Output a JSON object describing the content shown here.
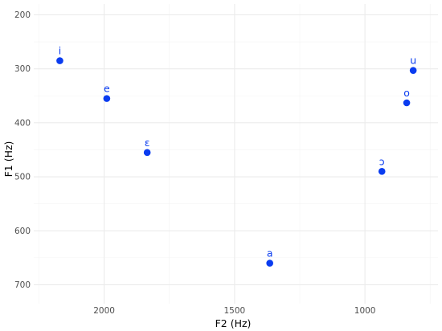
{
  "chart_data": {
    "type": "scatter",
    "xlabel": "F2 (Hz)",
    "ylabel": "F1 (Hz)",
    "x_reversed": true,
    "y_reversed": true,
    "xlim": [
      2270,
      720
    ],
    "ylim": [
      180,
      735
    ],
    "xticks": [
      2000,
      1500,
      1000
    ],
    "xtick_labels": [
      "2000",
      "1500",
      "1000"
    ],
    "yticks": [
      200,
      300,
      400,
      500,
      600,
      700
    ],
    "ytick_labels": [
      "200",
      "300",
      "400",
      "500",
      "600",
      "700"
    ],
    "grid": true,
    "point_color": "#0a3cf0",
    "points": [
      {
        "label": "i",
        "x": 2170,
        "y": 285
      },
      {
        "label": "e",
        "x": 1990,
        "y": 355
      },
      {
        "label": "ɛ",
        "x": 1835,
        "y": 455
      },
      {
        "label": "a",
        "x": 1365,
        "y": 660
      },
      {
        "label": "ɔ",
        "x": 935,
        "y": 490
      },
      {
        "label": "o",
        "x": 840,
        "y": 363
      },
      {
        "label": "u",
        "x": 815,
        "y": 303
      }
    ]
  }
}
